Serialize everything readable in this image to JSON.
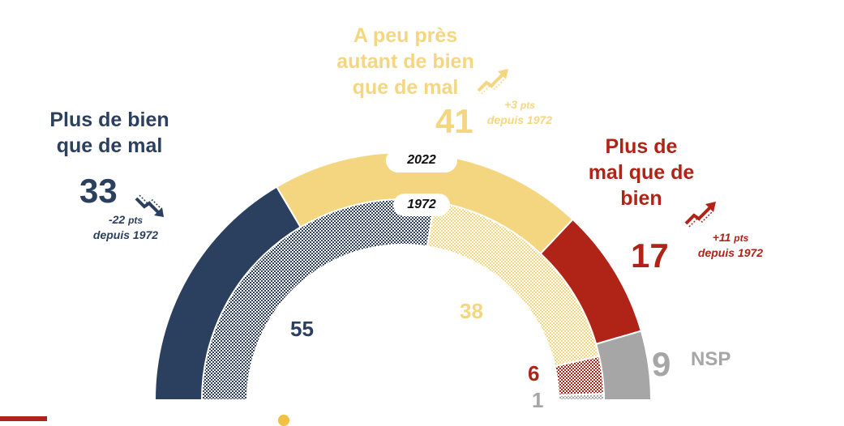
{
  "chart_data": {
    "type": "pie",
    "rings": [
      {
        "year": "2022",
        "values": [
          33,
          41,
          17,
          9
        ]
      },
      {
        "year": "1972",
        "values": [
          55,
          38,
          6,
          1
        ]
      }
    ],
    "categories": [
      {
        "label": "Plus de bien que de mal",
        "color": "#2b3f5e",
        "delta_value": "-22",
        "delta_unit": "pts",
        "delta_note": "depuis 1972",
        "trend_icon": "trend-down-icon"
      },
      {
        "label": "A peu près autant de bien que de mal",
        "color": "#f5d680",
        "delta_value": "+3",
        "delta_unit": "pts",
        "delta_note": "depuis 1972",
        "trend_icon": "trend-up-icon"
      },
      {
        "label": "Plus de mal que de bien",
        "color": "#b02418",
        "delta_value": "+11",
        "delta_unit": "pts",
        "delta_note": "depuis 1972",
        "trend_icon": "trend-up-icon"
      },
      {
        "label": "NSP",
        "color": "#a6a6a6"
      }
    ],
    "labels": {
      "cat1_line1": "Plus de bien",
      "cat1_line2": "que de mal",
      "cat2_line1": "A peu près",
      "cat2_line2": "autant de bien",
      "cat2_line3": "que de mal",
      "cat3_line1": "Plus de",
      "cat3_line2": "mal que de",
      "cat3_line3": "bien",
      "nsp": "NSP"
    },
    "half_donut": true,
    "outer_year_label": "2022",
    "inner_year_label": "1972"
  }
}
